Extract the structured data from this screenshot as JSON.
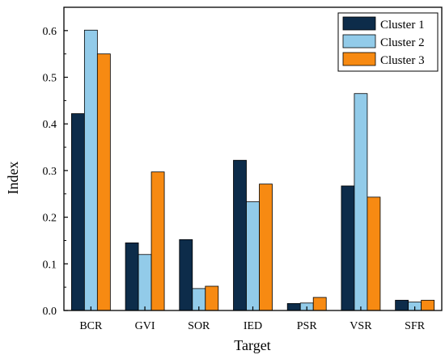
{
  "chart_data": {
    "type": "bar",
    "xlabel": "Target",
    "ylabel": "Index",
    "ylim": [
      0,
      0.65
    ],
    "yticks": [
      "0.0",
      "0.1",
      "0.2",
      "0.3",
      "0.4",
      "0.5",
      "0.6"
    ],
    "categories": [
      "BCR",
      "GVI",
      "SOR",
      "IED",
      "PSR",
      "VSR",
      "SFR"
    ],
    "series": [
      {
        "name": "Cluster 1",
        "color": "#0d2c4a",
        "values": [
          0.422,
          0.145,
          0.152,
          0.322,
          0.015,
          0.267,
          0.022
        ]
      },
      {
        "name": "Cluster 2",
        "color": "#92cbe9",
        "values": [
          0.601,
          0.12,
          0.047,
          0.233,
          0.016,
          0.465,
          0.018
        ]
      },
      {
        "name": "Cluster 3",
        "color": "#f78a12",
        "values": [
          0.55,
          0.297,
          0.052,
          0.271,
          0.028,
          0.243,
          0.022
        ]
      }
    ],
    "legend": "top-right",
    "grid": false
  }
}
